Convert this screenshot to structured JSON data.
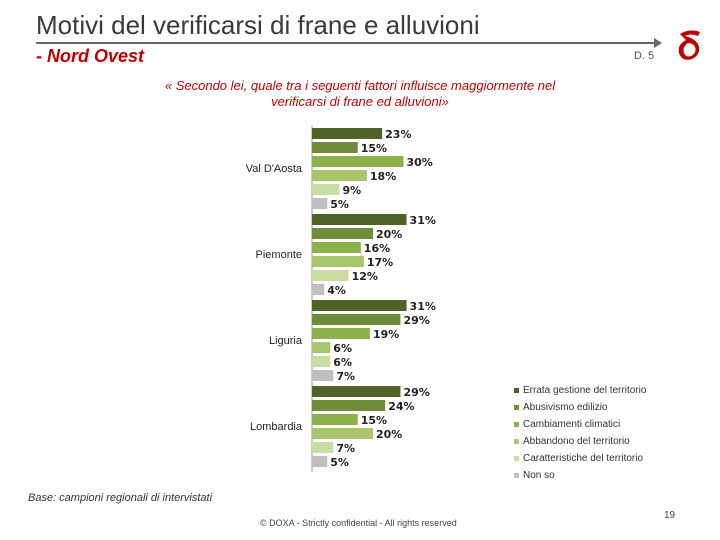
{
  "header": {
    "title": "Motivi del verificarsi di frane e alluvioni",
    "subtitle": "- Nord Ovest",
    "section_code": "D. 5"
  },
  "question": "« Secondo lei, quale tra i seguenti fattori influisce maggiormente nel verificarsi di frane ed alluvioni»",
  "base_note": "Base: campioni regionali di intervistati",
  "footer": {
    "copyright": "© DOXA - Strictly confidential - All rights reserved",
    "page_number": "19"
  },
  "colors": {
    "title": "#3a3a3a",
    "subtitle": "#c00000",
    "logo": "#c00000"
  },
  "chart_data": {
    "type": "bar",
    "orientation": "horizontal",
    "value_suffix": "%",
    "categories": [
      "Val D'Aosta",
      "Piemonte",
      "Liguria",
      "Lombardia"
    ],
    "series": [
      {
        "name": "Errata gestione del territorio",
        "color": "#4f6228",
        "values": [
          23,
          31,
          31,
          29
        ]
      },
      {
        "name": "Abusivismo edilizio",
        "color": "#6f8c3a",
        "values": [
          15,
          20,
          29,
          24
        ]
      },
      {
        "name": "Cambiamenti climatici",
        "color": "#8cb04a",
        "values": [
          30,
          16,
          19,
          15
        ]
      },
      {
        "name": "Abbandono del territorio",
        "color": "#a9c66d",
        "values": [
          18,
          17,
          6,
          20
        ]
      },
      {
        "name": "Caratteristiche del territorio",
        "color": "#c8dca4",
        "values": [
          9,
          12,
          6,
          7
        ]
      },
      {
        "name": "Non so",
        "color": "#bfbfbf",
        "values": [
          5,
          4,
          7,
          5
        ]
      }
    ],
    "legend_position": "right",
    "grid": false
  }
}
